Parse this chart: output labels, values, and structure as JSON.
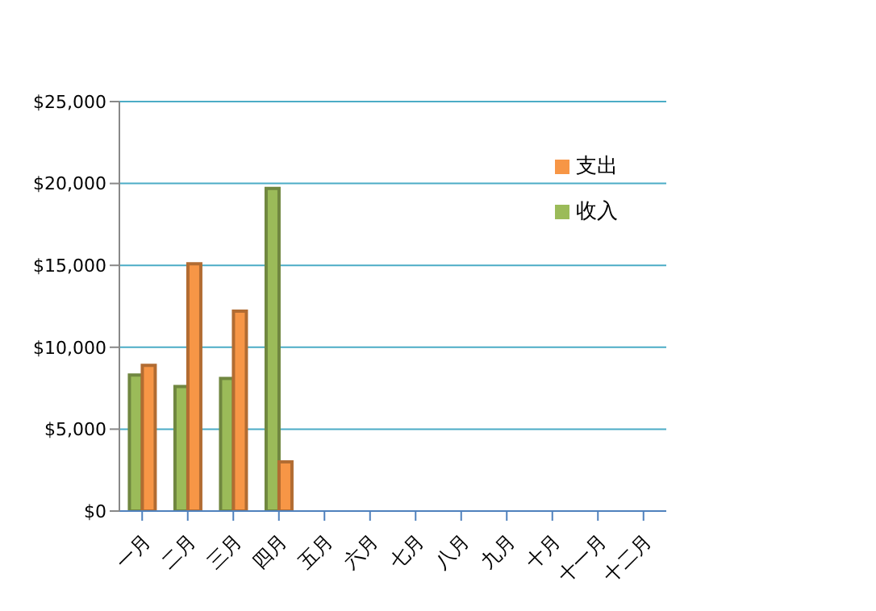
{
  "chart_data": {
    "type": "bar",
    "categories": [
      "一月",
      "二月",
      "三月",
      "四月",
      "五月",
      "六月",
      "七月",
      "八月",
      "九月",
      "十月",
      "十一月",
      "十二月"
    ],
    "series": [
      {
        "name": "收入",
        "color": "#9bbb59",
        "values": [
          8300,
          7600,
          8100,
          19700,
          null,
          null,
          null,
          null,
          null,
          null,
          null,
          null
        ]
      },
      {
        "name": "支出",
        "color": "#f79646",
        "values": [
          8900,
          15100,
          12200,
          3000,
          null,
          null,
          null,
          null,
          null,
          null,
          null,
          null
        ]
      }
    ],
    "ylim": [
      0,
      25000
    ],
    "yticks": [
      {
        "value": 0,
        "label": "$0"
      },
      {
        "value": 5000,
        "label": "$5,000"
      },
      {
        "value": 10000,
        "label": "$10,000"
      },
      {
        "value": 15000,
        "label": "$15,000"
      },
      {
        "value": 20000,
        "label": "$20,000"
      },
      {
        "value": 25000,
        "label": "$25,000"
      }
    ],
    "grid": "y",
    "legend": "top right"
  }
}
